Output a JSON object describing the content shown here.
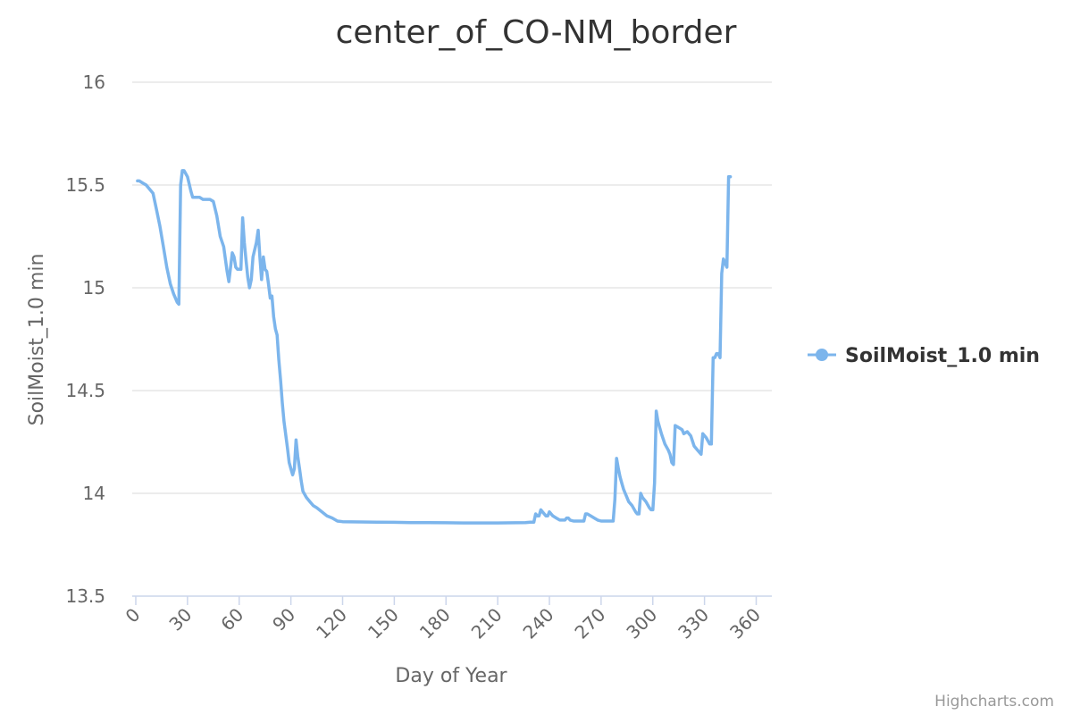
{
  "chart_data": {
    "type": "line",
    "title": "center_of_CO-NM_border",
    "xlabel": "Day of Year",
    "ylabel": "SoilMoist_1.0 min",
    "xlim": [
      0,
      365
    ],
    "ylim": [
      13.5,
      16
    ],
    "x_ticks": [
      "0",
      "30",
      "60",
      "90",
      "120",
      "150",
      "180",
      "210",
      "240",
      "270",
      "300",
      "330",
      "360"
    ],
    "y_ticks": [
      "13.5",
      "14",
      "14.5",
      "15",
      "15.5",
      "16"
    ],
    "grid": "horizontal",
    "legend": "right",
    "color": "#7cb5ec",
    "credits": "Highcharts.com",
    "series": [
      {
        "name": "SoilMoist_1.0 min",
        "points": [
          [
            1,
            15.52
          ],
          [
            2,
            15.52
          ],
          [
            4,
            15.51
          ],
          [
            6,
            15.5
          ],
          [
            8,
            15.48
          ],
          [
            10,
            15.46
          ],
          [
            12,
            15.38
          ],
          [
            14,
            15.3
          ],
          [
            16,
            15.2
          ],
          [
            18,
            15.1
          ],
          [
            20,
            15.02
          ],
          [
            22,
            14.97
          ],
          [
            24,
            14.93
          ],
          [
            25,
            14.92
          ],
          [
            26,
            15.5
          ],
          [
            27,
            15.57
          ],
          [
            28,
            15.57
          ],
          [
            30,
            15.54
          ],
          [
            32,
            15.47
          ],
          [
            33,
            15.44
          ],
          [
            35,
            15.44
          ],
          [
            37,
            15.44
          ],
          [
            39,
            15.43
          ],
          [
            41,
            15.43
          ],
          [
            43,
            15.43
          ],
          [
            45,
            15.42
          ],
          [
            47,
            15.35
          ],
          [
            49,
            15.25
          ],
          [
            51,
            15.2
          ],
          [
            53,
            15.08
          ],
          [
            54,
            15.03
          ],
          [
            55,
            15.1
          ],
          [
            56,
            15.17
          ],
          [
            57,
            15.15
          ],
          [
            58,
            15.1
          ],
          [
            59,
            15.09
          ],
          [
            61,
            15.09
          ],
          [
            62,
            15.34
          ],
          [
            63,
            15.22
          ],
          [
            64,
            15.13
          ],
          [
            65,
            15.05
          ],
          [
            66,
            15.0
          ],
          [
            67,
            15.04
          ],
          [
            68,
            15.15
          ],
          [
            70,
            15.22
          ],
          [
            71,
            15.28
          ],
          [
            72,
            15.15
          ],
          [
            73,
            15.04
          ],
          [
            74,
            15.15
          ],
          [
            75,
            15.09
          ],
          [
            76,
            15.08
          ],
          [
            77,
            15.02
          ],
          [
            78,
            14.95
          ],
          [
            79,
            14.96
          ],
          [
            80,
            14.86
          ],
          [
            81,
            14.8
          ],
          [
            82,
            14.77
          ],
          [
            83,
            14.65
          ],
          [
            84,
            14.55
          ],
          [
            85,
            14.44
          ],
          [
            86,
            14.35
          ],
          [
            88,
            14.22
          ],
          [
            89,
            14.15
          ],
          [
            90,
            14.12
          ],
          [
            91,
            14.09
          ],
          [
            92,
            14.12
          ],
          [
            93,
            14.26
          ],
          [
            94,
            14.18
          ],
          [
            95,
            14.12
          ],
          [
            96,
            14.06
          ],
          [
            97,
            14.01
          ],
          [
            99,
            13.98
          ],
          [
            101,
            13.96
          ],
          [
            103,
            13.94
          ],
          [
            105,
            13.93
          ],
          [
            108,
            13.91
          ],
          [
            111,
            13.89
          ],
          [
            114,
            13.88
          ],
          [
            117,
            13.865
          ],
          [
            120,
            13.862
          ],
          [
            130,
            13.861
          ],
          [
            140,
            13.86
          ],
          [
            150,
            13.859
          ],
          [
            160,
            13.858
          ],
          [
            170,
            13.858
          ],
          [
            180,
            13.857
          ],
          [
            190,
            13.856
          ],
          [
            200,
            13.856
          ],
          [
            210,
            13.856
          ],
          [
            220,
            13.857
          ],
          [
            226,
            13.858
          ],
          [
            229,
            13.86
          ],
          [
            231,
            13.86
          ],
          [
            232,
            13.9
          ],
          [
            233,
            13.89
          ],
          [
            234,
            13.89
          ],
          [
            235,
            13.92
          ],
          [
            236,
            13.91
          ],
          [
            237,
            13.9
          ],
          [
            238,
            13.89
          ],
          [
            239,
            13.89
          ],
          [
            240,
            13.91
          ],
          [
            241,
            13.9
          ],
          [
            242,
            13.89
          ],
          [
            244,
            13.88
          ],
          [
            246,
            13.87
          ],
          [
            249,
            13.87
          ],
          [
            250,
            13.88
          ],
          [
            251,
            13.88
          ],
          [
            252,
            13.87
          ],
          [
            254,
            13.865
          ],
          [
            256,
            13.865
          ],
          [
            260,
            13.865
          ],
          [
            261,
            13.9
          ],
          [
            262,
            13.9
          ],
          [
            264,
            13.89
          ],
          [
            266,
            13.88
          ],
          [
            268,
            13.87
          ],
          [
            270,
            13.865
          ],
          [
            275,
            13.865
          ],
          [
            277,
            13.865
          ],
          [
            278,
            13.97
          ],
          [
            279,
            14.17
          ],
          [
            280,
            14.12
          ],
          [
            281,
            14.08
          ],
          [
            282,
            14.05
          ],
          [
            283,
            14.02
          ],
          [
            284,
            14.0
          ],
          [
            285,
            13.98
          ],
          [
            286,
            13.96
          ],
          [
            288,
            13.94
          ],
          [
            290,
            13.91
          ],
          [
            291,
            13.9
          ],
          [
            292,
            13.9
          ],
          [
            293,
            14.0
          ],
          [
            294,
            13.98
          ],
          [
            296,
            13.96
          ],
          [
            298,
            13.93
          ],
          [
            299,
            13.92
          ],
          [
            300,
            13.92
          ],
          [
            301,
            14.05
          ],
          [
            302,
            14.4
          ],
          [
            303,
            14.35
          ],
          [
            305,
            14.29
          ],
          [
            307,
            14.24
          ],
          [
            309,
            14.21
          ],
          [
            310,
            14.19
          ],
          [
            311,
            14.15
          ],
          [
            312,
            14.14
          ],
          [
            313,
            14.33
          ],
          [
            315,
            14.32
          ],
          [
            317,
            14.31
          ],
          [
            318,
            14.29
          ],
          [
            320,
            14.3
          ],
          [
            322,
            14.28
          ],
          [
            324,
            14.23
          ],
          [
            326,
            14.21
          ],
          [
            328,
            14.19
          ],
          [
            329,
            14.29
          ],
          [
            331,
            14.27
          ],
          [
            333,
            14.24
          ],
          [
            334,
            14.24
          ],
          [
            335,
            14.66
          ],
          [
            336,
            14.66
          ],
          [
            337,
            14.68
          ],
          [
            338,
            14.68
          ],
          [
            339,
            14.66
          ],
          [
            340,
            15.07
          ],
          [
            341,
            15.14
          ],
          [
            342,
            15.12
          ],
          [
            343,
            15.1
          ],
          [
            344,
            15.54
          ],
          [
            345,
            15.54
          ]
        ]
      }
    ]
  }
}
